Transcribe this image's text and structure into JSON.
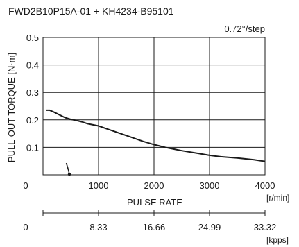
{
  "chart_data": {
    "type": "line",
    "title": "FWD2B10P15A-01 + KH4234-B95101",
    "annotation": "0.72°/step",
    "xlabel": "PULSE RATE",
    "ylabel": "PULL-OUT TORQUE [N·m]",
    "xunit": "[r/min]",
    "secondary_unit": "[kpps]",
    "xlim": [
      0,
      4000
    ],
    "ylim": [
      0,
      0.5
    ],
    "xticks": [
      0,
      1000,
      2000,
      3000,
      4000
    ],
    "xtick_labels": [
      "0",
      "1000",
      "2000",
      "3000",
      "4000"
    ],
    "yticks": [
      0.1,
      0.2,
      0.3,
      0.4,
      0.5
    ],
    "ytick_labels": [
      "0.1",
      "0.2",
      "0.3",
      "0.4",
      "0.5"
    ],
    "ytick_zero_label": "0",
    "secondary_axis": {
      "ticks_rpm": [
        0,
        1000,
        2000,
        3000,
        4000
      ],
      "labels": [
        "0",
        "8.33",
        "16.66",
        "24.99",
        "33.32"
      ]
    },
    "grid": true,
    "series": [
      {
        "values": [
          [
            50,
            0.235
          ],
          [
            120,
            0.235
          ],
          [
            200,
            0.228
          ],
          [
            300,
            0.218
          ],
          [
            400,
            0.208
          ],
          [
            500,
            0.202
          ],
          [
            600,
            0.198
          ],
          [
            700,
            0.193
          ],
          [
            800,
            0.186
          ],
          [
            900,
            0.182
          ],
          [
            1000,
            0.178
          ],
          [
            1200,
            0.164
          ],
          [
            1400,
            0.15
          ],
          [
            1600,
            0.136
          ],
          [
            1800,
            0.122
          ],
          [
            2000,
            0.11
          ],
          [
            2200,
            0.1
          ],
          [
            2500,
            0.088
          ],
          [
            2800,
            0.078
          ],
          [
            3000,
            0.071
          ],
          [
            3200,
            0.066
          ],
          [
            3500,
            0.061
          ],
          [
            3800,
            0.055
          ],
          [
            4000,
            0.049
          ]
        ]
      }
    ],
    "start_marker": {
      "values": [
        [
          420,
          0.043
        ],
        [
          460,
          0.016
        ],
        [
          475,
          0.002
        ]
      ]
    }
  }
}
